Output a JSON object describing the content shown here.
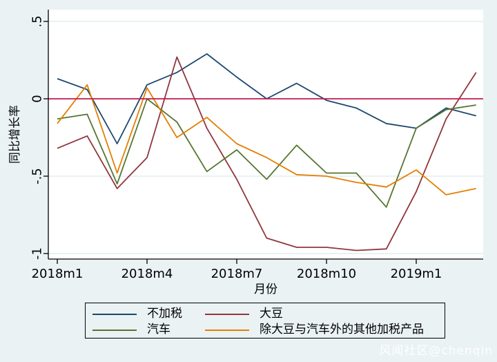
{
  "chart_data": {
    "type": "line",
    "title": "",
    "xlabel": "月份",
    "ylabel": "同比增长率",
    "x": [
      "2018m1",
      "2018m2",
      "2018m3",
      "2018m4",
      "2018m5",
      "2018m6",
      "2018m7",
      "2018m8",
      "2018m9",
      "2018m10",
      "2018m11",
      "2018m12",
      "2019m1",
      "2019m2",
      "2019m3"
    ],
    "x_tick_labels": [
      "2018m1",
      "2018m4",
      "2018m7",
      "2018m10",
      "2019m1"
    ],
    "x_tick_month_index": [
      0,
      3,
      6,
      9,
      12
    ],
    "y_tick_labels": [
      ".5",
      "0",
      "-.5",
      "-1"
    ],
    "y_tick_values": [
      0.5,
      0,
      -0.5,
      -1
    ],
    "ylim": [
      -1.05,
      0.55
    ],
    "grid": true,
    "legend_position": "bottom",
    "reference_line": {
      "y": 0,
      "color": "#C8184E"
    },
    "series": [
      {
        "name": "不加税",
        "color": "#1A476F",
        "values": [
          0.13,
          0.06,
          -0.29,
          0.09,
          0.17,
          0.29,
          0.14,
          0.0,
          0.1,
          -0.01,
          -0.06,
          -0.16,
          -0.19,
          -0.06,
          -0.11
        ]
      },
      {
        "name": "大豆",
        "color": "#90353B",
        "values": [
          -0.32,
          -0.24,
          -0.58,
          -0.38,
          0.27,
          -0.19,
          -0.52,
          -0.9,
          -0.96,
          -0.96,
          -0.98,
          -0.97,
          -0.6,
          -0.13,
          0.17
        ]
      },
      {
        "name": "汽车",
        "color": "#55752F",
        "values": [
          -0.13,
          -0.1,
          -0.55,
          0.0,
          -0.15,
          -0.47,
          -0.33,
          -0.52,
          -0.3,
          -0.48,
          -0.48,
          -0.7,
          -0.19,
          -0.07,
          -0.04
        ]
      },
      {
        "name": "除大豆与汽车外的其他加税产品",
        "color": "#E37E00",
        "values": [
          -0.16,
          0.09,
          -0.48,
          0.07,
          -0.25,
          -0.12,
          -0.29,
          -0.38,
          -0.49,
          -0.5,
          -0.54,
          -0.57,
          -0.46,
          -0.62,
          -0.58
        ]
      }
    ]
  },
  "legend": {
    "rows": [
      [
        {
          "label": "不加税",
          "color": "#1A476F"
        },
        {
          "label": "大豆",
          "color": "#90353B"
        }
      ],
      [
        {
          "label": "汽车",
          "color": "#55752F"
        },
        {
          "label": "除大豆与汽车外的其他加税产品",
          "color": "#E37E00"
        }
      ]
    ]
  },
  "watermark": "风闻社区@chenqin",
  "colors": {
    "background": "#EAF2F3",
    "plot_background": "#FFFFFF",
    "grid": "#E2EDEF",
    "axis": "#000000",
    "zero_line": "#C8184E"
  }
}
